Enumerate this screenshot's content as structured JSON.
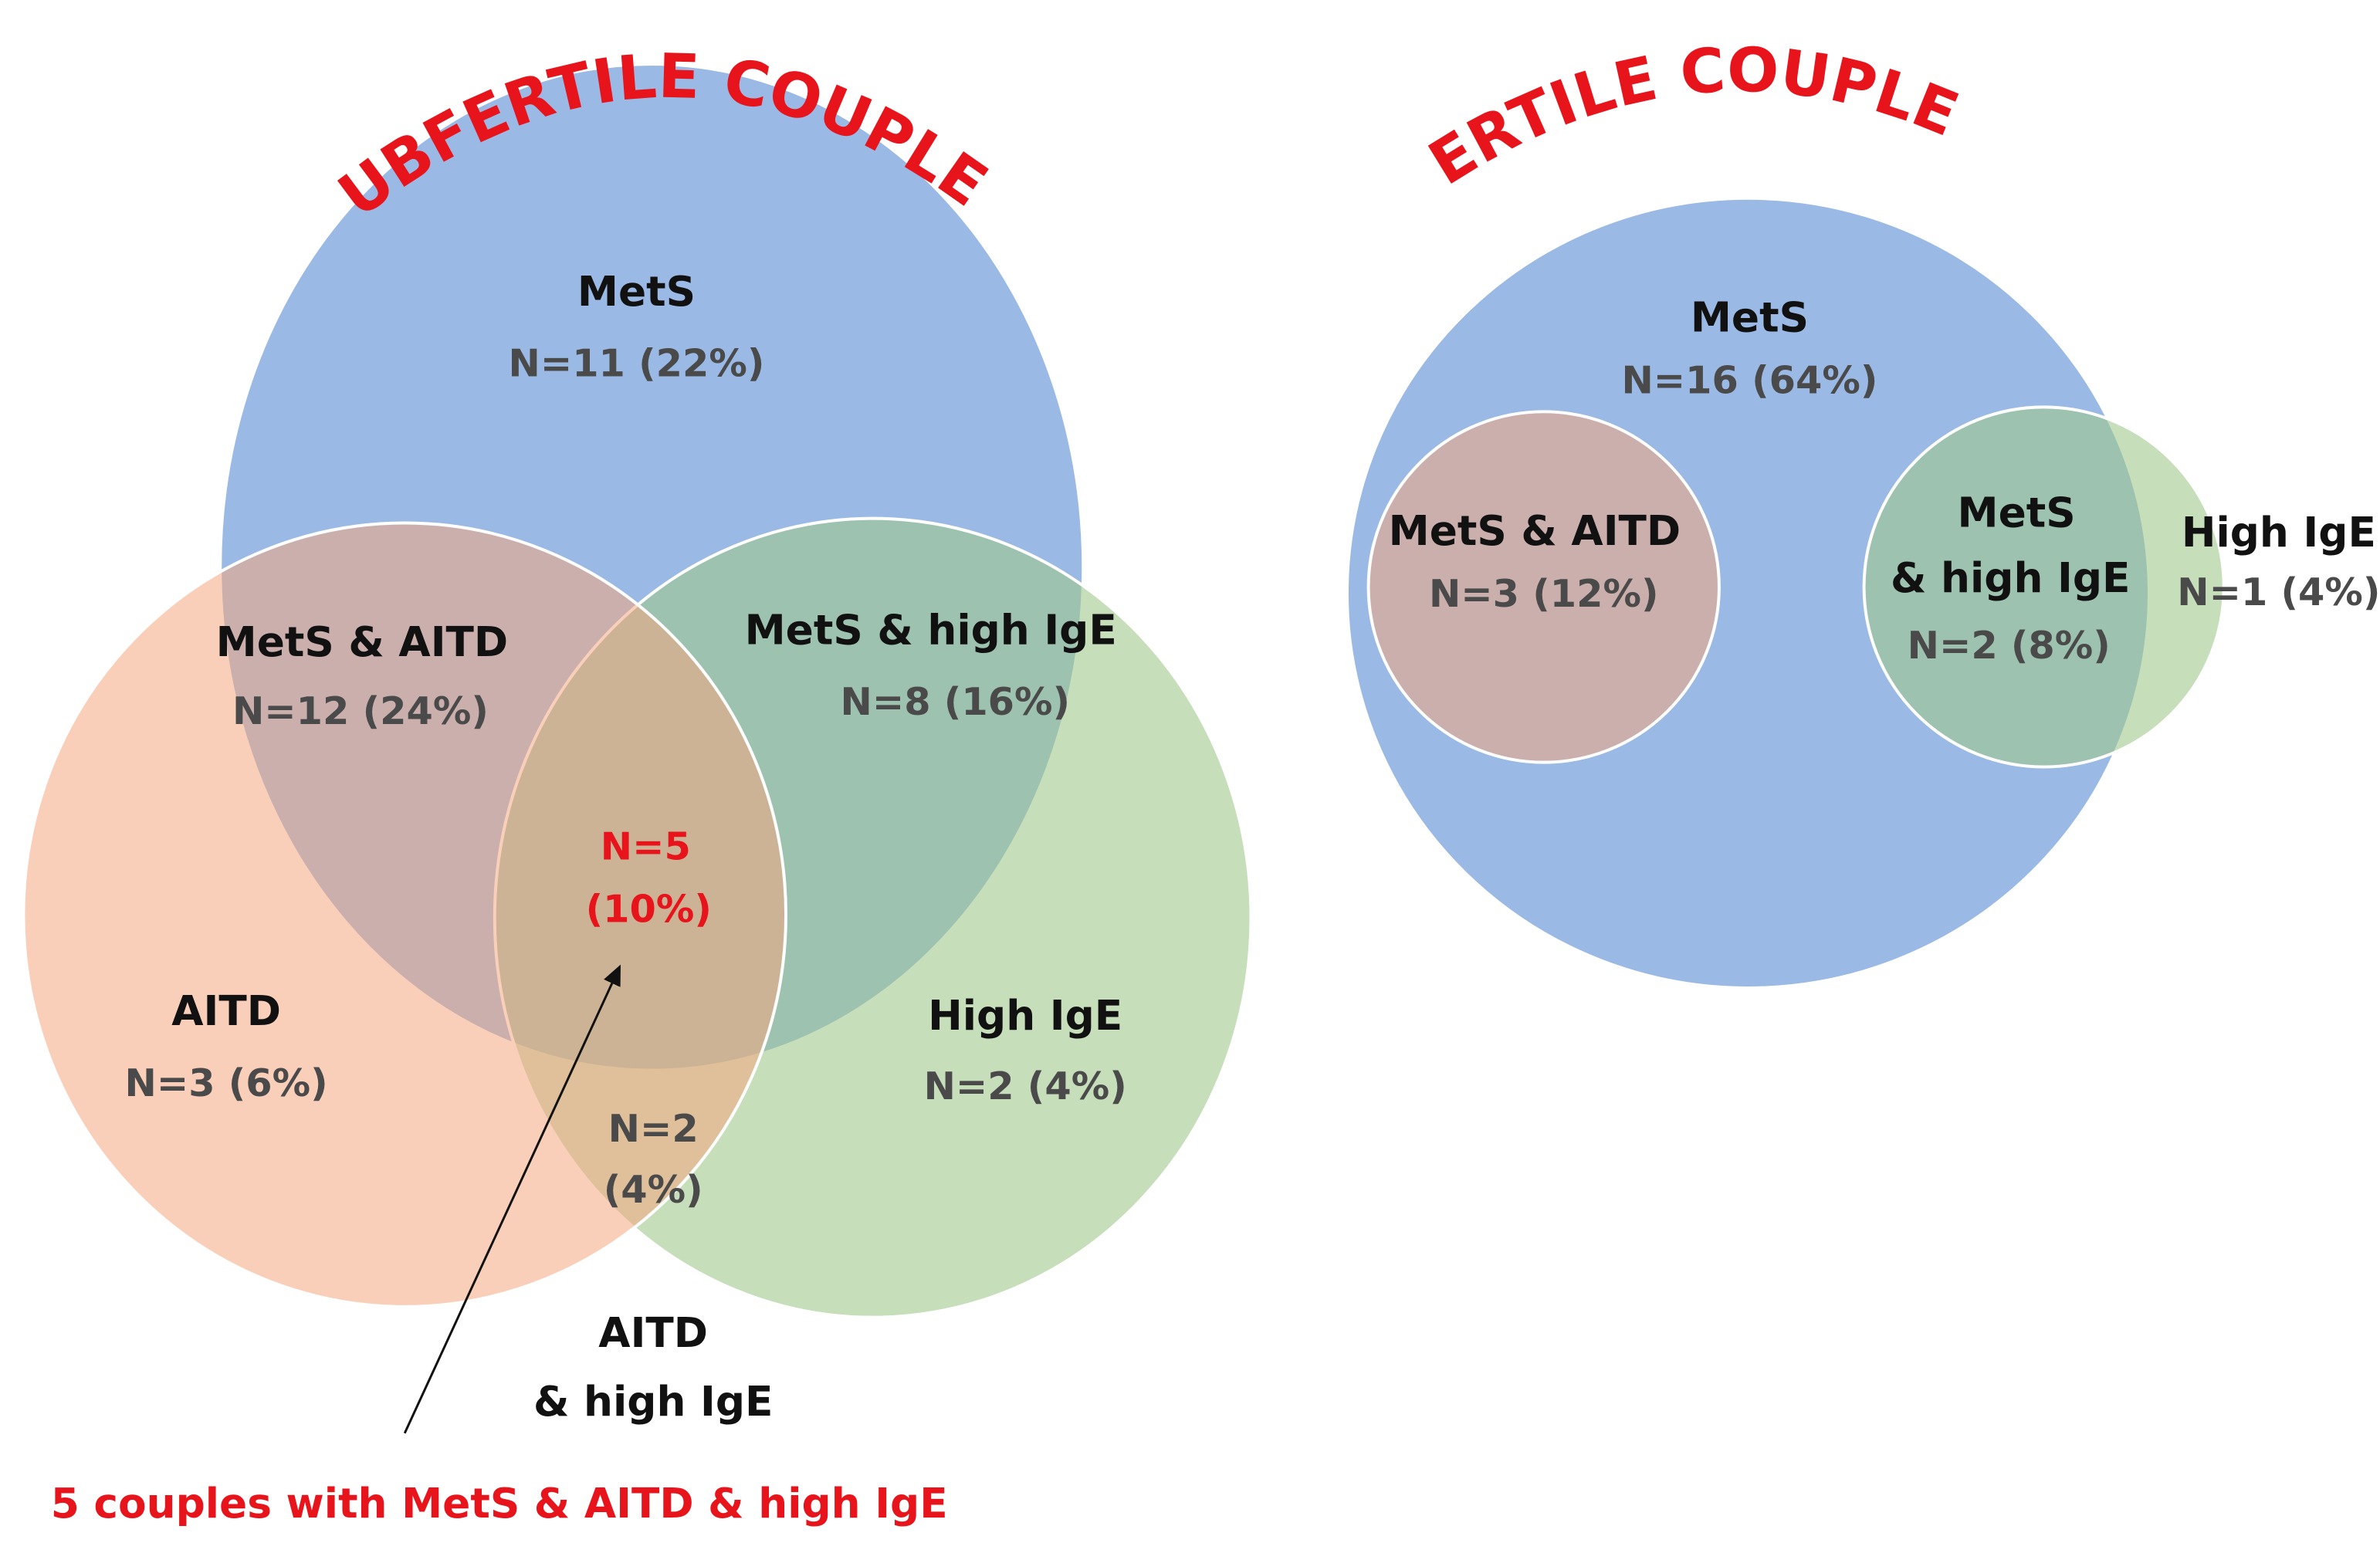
{
  "subfertile": {
    "title": "SUBFERTILE COUPLES",
    "regions": [
      {
        "lines": [
          "MetS",
          "N=11 (22%)"
        ]
      },
      {
        "lines": [
          "MetS & AITD",
          "N=12 (24%)"
        ]
      },
      {
        "lines": [
          "MetS & high IgE",
          "N=8 (16%)"
        ]
      },
      {
        "lines": [
          "N=5",
          "(10%)"
        ]
      },
      {
        "lines": [
          "AITD",
          "N=3 (6%)"
        ]
      },
      {
        "lines": [
          "High IgE",
          "N=2 (4%)"
        ]
      },
      {
        "lines": [
          "N=2",
          "(4%)"
        ]
      },
      {
        "lines": [
          "AITD",
          "& high IgE"
        ]
      }
    ],
    "annotation": "5 couples with MetS & AITD & high IgE"
  },
  "fertile": {
    "title": "FERTILE COUPLES",
    "regions": [
      {
        "lines": [
          "MetS",
          "N=16 (64%)"
        ]
      },
      {
        "lines": [
          "MetS & AITD",
          "N=3 (12%)"
        ]
      },
      {
        "lines": [
          "MetS",
          "& high IgE",
          "N=2 (8%)"
        ]
      },
      {
        "lines": [
          "High IgE",
          "N=1 (4%)"
        ]
      }
    ]
  }
}
